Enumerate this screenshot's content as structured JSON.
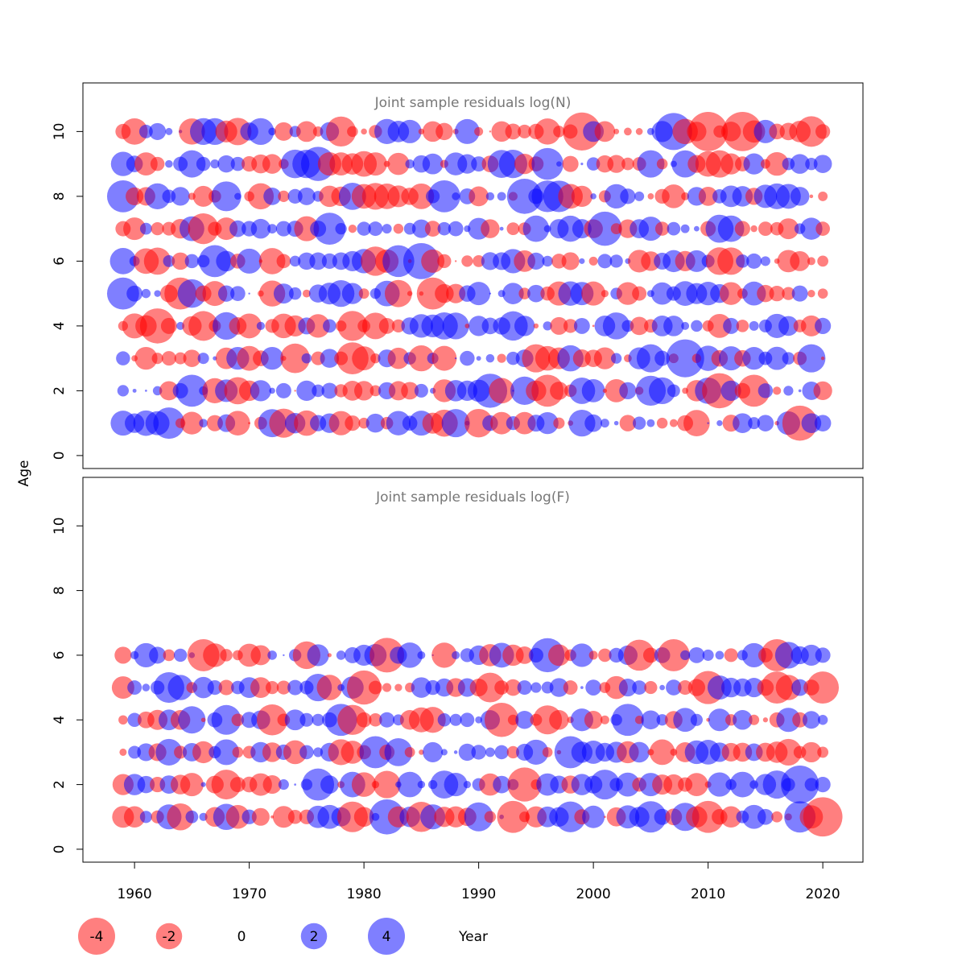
{
  "chart_data": {
    "type": "scatter",
    "style": "bubble",
    "ylabel": "Age",
    "xlabel": "Year",
    "x_ticks": [
      1960,
      1970,
      1980,
      1990,
      2000,
      2010,
      2020
    ],
    "y_ticks": [
      0,
      2,
      4,
      6,
      8,
      10
    ],
    "xlim": [
      1955.5,
      2023.5
    ],
    "ylim": [
      -0.4,
      11.5
    ],
    "year_range": [
      1959,
      2020
    ],
    "colors": {
      "negative": "#ff0000",
      "positive": "#0000ff"
    },
    "legend": {
      "entries": [
        {
          "value": -4,
          "label": "-4"
        },
        {
          "value": -2,
          "label": "-2"
        },
        {
          "value": 0,
          "label": "0"
        },
        {
          "value": 2,
          "label": "2"
        },
        {
          "value": 4,
          "label": "4"
        }
      ],
      "placement": "bottom"
    },
    "panels": [
      {
        "title": "Joint sample residuals log(N)",
        "ages": [
          1,
          2,
          3,
          4,
          5,
          6,
          7,
          8,
          9,
          10
        ],
        "seed": 7,
        "highlights": [
          {
            "year": 2010,
            "age": 10,
            "value": -4.5
          },
          {
            "year": 2013,
            "age": 10,
            "value": -4.5
          },
          {
            "year": 1999,
            "age": 10,
            "value": -4.2
          },
          {
            "year": 2007,
            "age": 10,
            "value": 4.0
          },
          {
            "year": 1976,
            "age": 9,
            "value": 3.4
          },
          {
            "year": 1985,
            "age": 6,
            "value": 3.8
          },
          {
            "year": 2008,
            "age": 3,
            "value": 4.2
          },
          {
            "year": 2001,
            "age": 7,
            "value": 3.4
          },
          {
            "year": 1962,
            "age": 4,
            "value": -3.6
          },
          {
            "year": 2011,
            "age": 2,
            "value": -3.6
          },
          {
            "year": 2018,
            "age": 1,
            "value": -3.6
          },
          {
            "year": 1994,
            "age": 8,
            "value": 3.6
          },
          {
            "year": 1991,
            "age": 2,
            "value": 3.4
          },
          {
            "year": 1959,
            "age": 5,
            "value": 3.0
          },
          {
            "year": 1959,
            "age": 8,
            "value": 3.0
          }
        ]
      },
      {
        "title": "Joint sample residuals log(F)",
        "ages": [
          1,
          2,
          3,
          4,
          5,
          6
        ],
        "seed": 23,
        "highlights": [
          {
            "year": 2020,
            "age": 1,
            "value": -4.5
          },
          {
            "year": 2018,
            "age": 2,
            "value": 4.2
          },
          {
            "year": 1982,
            "age": 1,
            "value": 3.6
          },
          {
            "year": 1982,
            "age": 6,
            "value": -3.5
          },
          {
            "year": 1980,
            "age": 5,
            "value": -3.4
          },
          {
            "year": 1992,
            "age": 4,
            "value": -3.4
          },
          {
            "year": 1994,
            "age": 2,
            "value": -3.4
          },
          {
            "year": 1996,
            "age": 6,
            "value": 3.4
          },
          {
            "year": 2010,
            "age": 5,
            "value": -3.2
          }
        ]
      }
    ]
  }
}
